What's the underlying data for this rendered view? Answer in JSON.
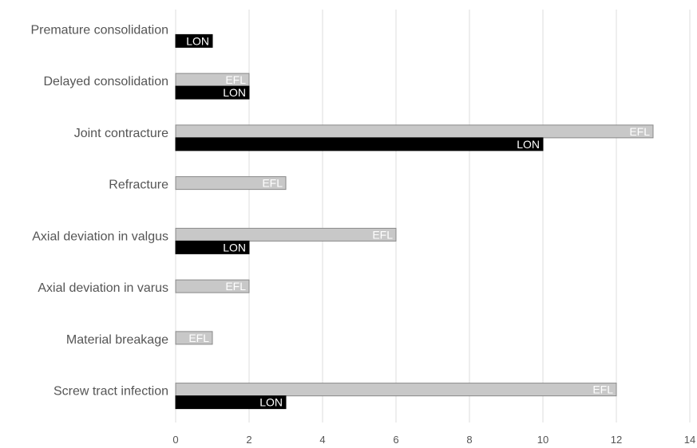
{
  "chart_data": {
    "type": "bar",
    "orientation": "horizontal",
    "categories": [
      "Premature consolidation",
      "Delayed consolidation",
      "Joint contracture",
      "Refracture",
      "Axial deviation in valgus",
      "Axial deviation in varus",
      "Material breakage",
      "Screw tract infection"
    ],
    "series": [
      {
        "name": "EFL",
        "values": [
          0,
          2,
          13,
          3,
          6,
          2,
          1,
          12
        ],
        "color": "#c8c8c8",
        "stroke": "#888888",
        "label_color": "#ffffff"
      },
      {
        "name": "LON",
        "values": [
          1,
          2,
          10,
          0,
          2,
          0,
          0,
          3
        ],
        "color": "#000000",
        "stroke": "#000000",
        "label_color": "#ffffff"
      }
    ],
    "xlim": [
      0,
      14
    ],
    "xticks": [
      "0",
      "2",
      "4",
      "6",
      "8",
      "10",
      "12",
      "14"
    ],
    "grid": true,
    "title": "",
    "xlabel": "",
    "ylabel": ""
  }
}
